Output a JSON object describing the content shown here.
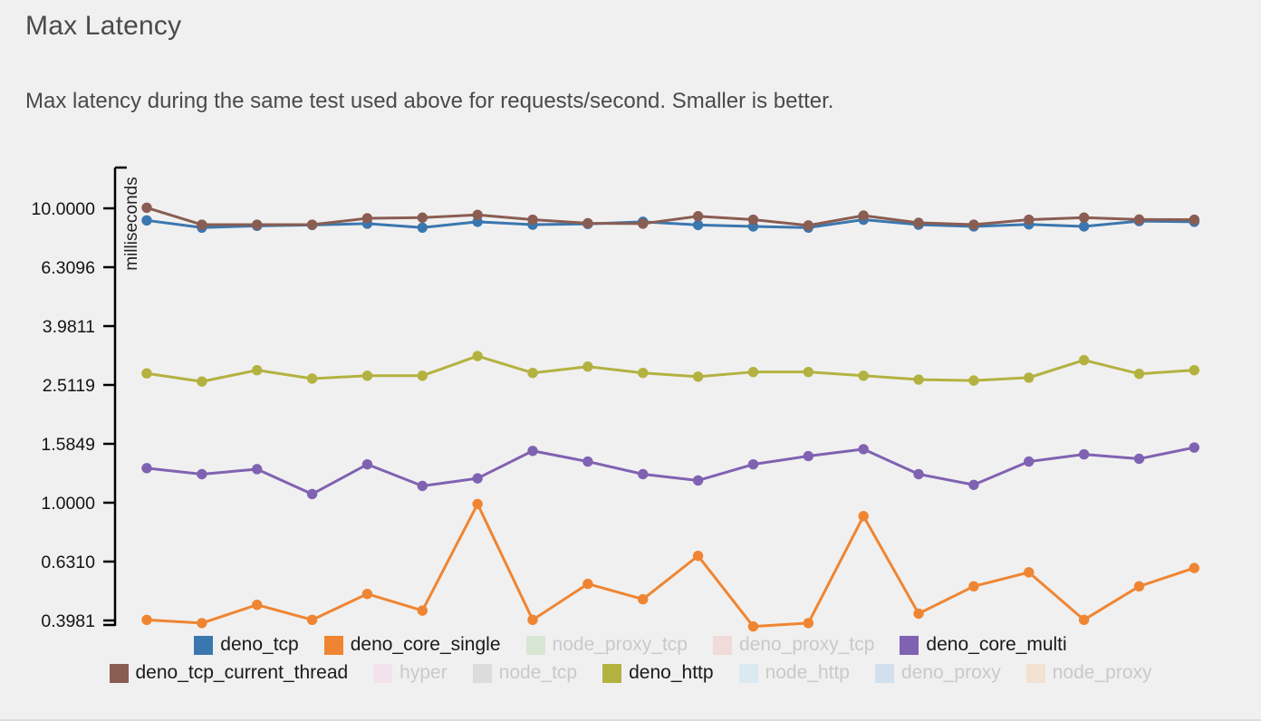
{
  "page": {
    "title": "Max Latency",
    "subtitle": "Max latency during the same test used above for requests/second. Smaller is better.",
    "background_color": "#f0f0f0",
    "text_color": "#4a4a4a"
  },
  "chart_data": {
    "type": "line",
    "title": "Max Latency",
    "xlabel": "",
    "ylabel": "milliseconds",
    "y_scale": "log10",
    "ylim": [
      0.38,
      10.5
    ],
    "grid": false,
    "legend_position": "bottom",
    "points_per_series": 20,
    "y_axis": {
      "label": "milliseconds",
      "tick_labels": [
        "10.0000",
        "6.3096",
        "3.9811",
        "2.5119",
        "1.5849",
        "1.0000",
        "0.6310",
        "0.3981"
      ],
      "tick_values": [
        10.0,
        6.3096,
        3.9811,
        2.5119,
        1.5849,
        1.0,
        0.631,
        0.3981
      ],
      "axis_break_at_bottom": true
    },
    "series": [
      {
        "name": "deno_tcp",
        "color": "#3b77af",
        "active": true,
        "values": [
          9.1,
          8.6,
          8.72,
          8.78,
          8.87,
          8.6,
          9.0,
          8.8,
          8.85,
          9.0,
          8.78,
          8.68,
          8.6,
          9.15,
          8.8,
          8.68,
          8.82,
          8.68,
          9.05,
          9.0
        ]
      },
      {
        "name": "deno_core_single",
        "color": "#ef8532",
        "active": true,
        "values": [
          0.4,
          0.39,
          0.45,
          0.4,
          0.49,
          0.43,
          0.99,
          0.4,
          0.53,
          0.47,
          0.66,
          0.38,
          0.39,
          0.9,
          0.42,
          0.52,
          0.58,
          0.4,
          0.52,
          0.6
        ]
      },
      {
        "name": "node_proxy_tcp",
        "color": "#d8e6d4",
        "active": false,
        "values": []
      },
      {
        "name": "deno_proxy_tcp",
        "color": "#f0dbda",
        "active": false,
        "values": []
      },
      {
        "name": "deno_core_multi",
        "color": "#8062b2",
        "active": true,
        "values": [
          1.31,
          1.25,
          1.3,
          1.07,
          1.35,
          1.14,
          1.21,
          1.5,
          1.38,
          1.25,
          1.19,
          1.35,
          1.44,
          1.52,
          1.25,
          1.15,
          1.38,
          1.46,
          1.41,
          1.54
        ]
      },
      {
        "name": "deno_tcp_current_thread",
        "color": "#8a5d52",
        "active": true,
        "values": [
          10.05,
          8.8,
          8.8,
          8.8,
          9.25,
          9.3,
          9.5,
          9.15,
          8.9,
          8.87,
          9.4,
          9.15,
          8.75,
          9.45,
          8.93,
          8.8,
          9.15,
          9.3,
          9.16,
          9.15
        ]
      },
      {
        "name": "hyper",
        "color": "#f2e2ec",
        "active": false,
        "values": []
      },
      {
        "name": "node_tcp",
        "color": "#dcdcdc",
        "active": false,
        "values": []
      },
      {
        "name": "deno_http",
        "color": "#b3b240",
        "active": true,
        "values": [
          2.75,
          2.58,
          2.82,
          2.64,
          2.7,
          2.7,
          3.15,
          2.76,
          2.9,
          2.76,
          2.68,
          2.78,
          2.78,
          2.7,
          2.62,
          2.6,
          2.66,
          3.05,
          2.74,
          2.82
        ]
      },
      {
        "name": "node_http",
        "color": "#dbeaf0",
        "active": false,
        "values": []
      },
      {
        "name": "deno_proxy",
        "color": "#d2dfec",
        "active": false,
        "values": []
      },
      {
        "name": "node_proxy",
        "color": "#f3e1d2",
        "active": false,
        "values": []
      }
    ],
    "legend_rows": [
      [
        "deno_tcp",
        "deno_core_single",
        "node_proxy_tcp",
        "deno_proxy_tcp",
        "deno_core_multi"
      ],
      [
        "deno_tcp_current_thread",
        "hyper",
        "node_tcp",
        "deno_http",
        "node_http",
        "deno_proxy",
        "node_proxy"
      ]
    ]
  }
}
